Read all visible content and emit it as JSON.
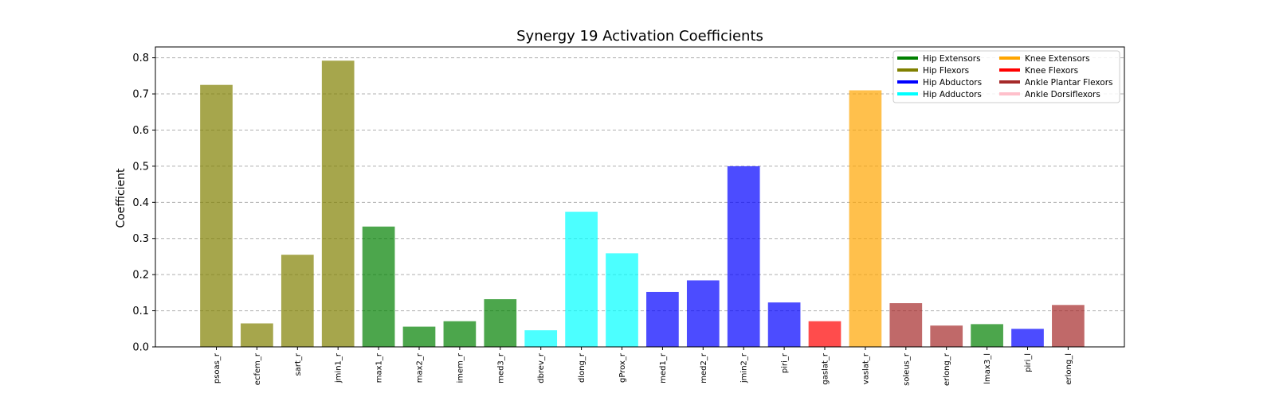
{
  "chart_data": {
    "type": "bar",
    "title": "Synergy 19 Activation Coefficients",
    "xlabel": "",
    "ylabel": "Coefficient",
    "ylim": [
      0,
      0.83
    ],
    "yticks": [
      0.0,
      0.1,
      0.2,
      0.3,
      0.4,
      0.5,
      0.6,
      0.7,
      0.8
    ],
    "ytick_labels": [
      "0.0",
      "0.1",
      "0.2",
      "0.3",
      "0.4",
      "0.5",
      "0.6",
      "0.7",
      "0.8"
    ],
    "grid": "y-dashed",
    "legend_position": "top-right",
    "categories": [
      "psoas_r",
      "ecfem_r",
      "sart_r",
      "jmin1_r",
      "max1_r",
      "max2_r",
      "imem_r",
      "med3_r",
      "dbrev_r",
      "dlong_r",
      "gProx_r",
      "med1_r",
      "med2_r",
      "jmin2_r",
      "piri_r",
      "gaslat_r",
      "vaslat_r",
      "soleus_r",
      "erlong_r",
      "lmax3_l",
      "piri_l",
      "erlong_l"
    ],
    "values": [
      0.725,
      0.065,
      0.255,
      0.792,
      0.333,
      0.056,
      0.071,
      0.132,
      0.046,
      0.374,
      0.259,
      0.152,
      0.184,
      0.5,
      0.123,
      0.071,
      0.71,
      0.121,
      0.059,
      0.063,
      0.05,
      0.116
    ],
    "groups": [
      "Hip Flexors",
      "Hip Flexors",
      "Hip Flexors",
      "Hip Flexors",
      "Hip Extensors",
      "Hip Extensors",
      "Hip Extensors",
      "Hip Extensors",
      "Hip Adductors",
      "Hip Adductors",
      "Hip Adductors",
      "Hip Abductors",
      "Hip Abductors",
      "Hip Abductors",
      "Hip Abductors",
      "Knee Flexors",
      "Knee Extensors",
      "Ankle Plantar Flexors",
      "Ankle Plantar Flexors",
      "Hip Extensors",
      "Hip Abductors",
      "Ankle Plantar Flexors"
    ],
    "legend": [
      {
        "name": "Hip Extensors",
        "color": "#008000"
      },
      {
        "name": "Hip Flexors",
        "color": "#808000"
      },
      {
        "name": "Hip Abductors",
        "color": "#0000ff"
      },
      {
        "name": "Hip Adductors",
        "color": "#00ffff"
      },
      {
        "name": "Knee Extensors",
        "color": "#ffa500"
      },
      {
        "name": "Knee Flexors",
        "color": "#ff0000"
      },
      {
        "name": "Ankle Plantar Flexors",
        "color": "#a52a2a"
      },
      {
        "name": "Ankle Dorsiflexors",
        "color": "#ffc0cb"
      }
    ],
    "bar_opacity": 0.7
  }
}
